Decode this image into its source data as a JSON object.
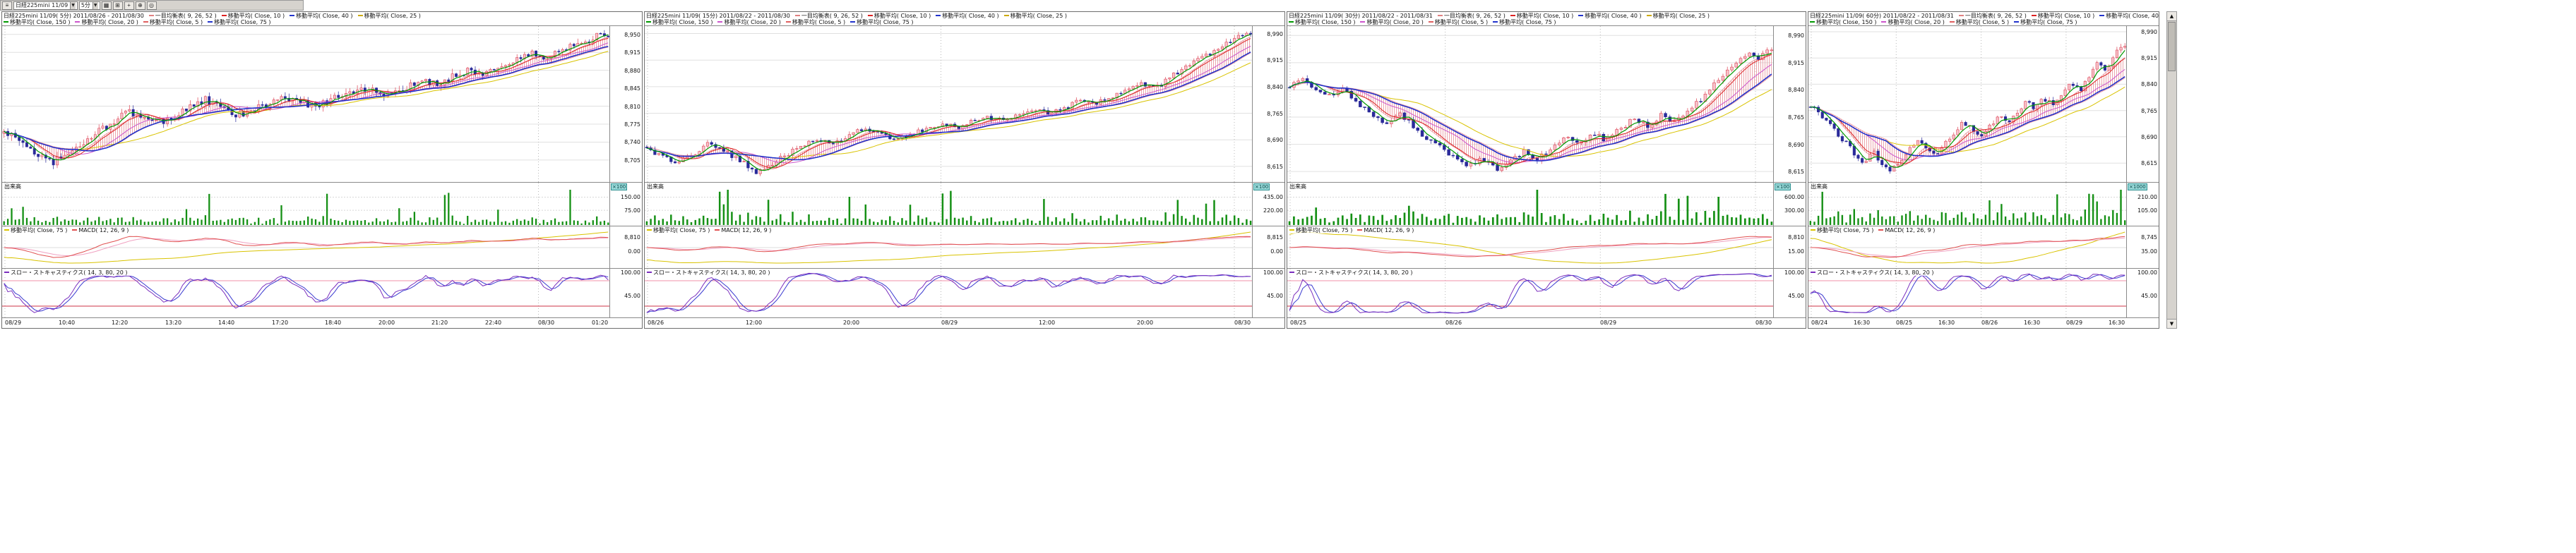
{
  "toolbar": {
    "menu_icon": "≡",
    "caret": "▼",
    "symbol_select": "日経225mini 11/09",
    "period_select": "5分",
    "buttons": [
      {
        "glyph": "▦"
      },
      {
        "glyph": "⊞"
      },
      {
        "glyph": "+"
      },
      {
        "glyph": "⊕"
      },
      {
        "glyph": "◎"
      }
    ]
  },
  "scrollbar": {
    "up_icon": "▲",
    "down_icon": "▼"
  },
  "colors": {
    "candle_up": "#dd4455",
    "candle_up_fill": "#f7c2ca",
    "candle_down": "#2a2a9a",
    "candle_down_fill": "#2a2a9a",
    "cloud": "#e89098",
    "ma_green": "#009900",
    "ma_red": "#dd2222",
    "ma_magenta": "#cc55cc",
    "ma_yellow": "#d9c300",
    "ma_blue": "#2233cc",
    "volume": "#159015",
    "macd": "#e05050",
    "macd_signal": "#f0a0c0",
    "stoch_k": "#7b2fbe",
    "stoch_d": "#3b3bd0",
    "ref_high": "#f090a8",
    "ref_low": "#cc3344",
    "grid": "#e0e0e0",
    "badge_bg": "#9adada"
  },
  "panels": [
    {
      "title_segments": [
        {
          "text": "日経225mini 11/09( 5分)  2011/08/26 - 2011/08/30",
          "color": "#000000"
        },
        {
          "text": "一目均衡表( 9, 26, 52 )",
          "color": "#e08080"
        },
        {
          "text": "移動平均( Close, 10 )",
          "color": "#dd2222"
        },
        {
          "text": "移動平均( Close, 40 )",
          "color": "#2233cc"
        },
        {
          "text": "移動平均( Close, 25 )",
          "color": "#ccaa00"
        }
      ],
      "indicator_segments": [
        {
          "text": "移動平均( Close, 150 )",
          "color": "#009900"
        },
        {
          "text": "移動平均( Close, 20 )",
          "color": "#cc55cc"
        },
        {
          "text": "移動平均( Close, 5 )",
          "color": "#e06060"
        },
        {
          "text": "移動平均( Close, 75 )",
          "color": "#2233cc"
        }
      ],
      "volume_label": "出来高",
      "unit_badge": "×100",
      "macd_segments": [
        {
          "text": "移動平均( Close, 75 )",
          "color": "#d9c300"
        },
        {
          "text": "MACD( 12, 26, 9 )",
          "color": "#e05050"
        }
      ],
      "stoch_segments": [
        {
          "text": "スロー・ストキャスティクス( 14, 3, 80, 20 )",
          "color": "#7b2fbe"
        }
      ]
    },
    {
      "title_segments": [
        {
          "text": "日経225mini 11/09( 15分)  2011/08/22 - 2011/08/30",
          "color": "#000000"
        },
        {
          "text": "一目均衡表( 9, 26, 52 )",
          "color": "#e08080"
        },
        {
          "text": "移動平均( Close, 10 )",
          "color": "#dd2222"
        },
        {
          "text": "移動平均( Close, 40 )",
          "color": "#2233cc"
        },
        {
          "text": "移動平均( Close, 25 )",
          "color": "#ccaa00"
        }
      ],
      "indicator_segments": [
        {
          "text": "移動平均( Close, 150 )",
          "color": "#009900"
        },
        {
          "text": "移動平均( Close, 20 )",
          "color": "#cc55cc"
        },
        {
          "text": "移動平均( Close, 5 )",
          "color": "#e06060"
        },
        {
          "text": "移動平均( Close, 75 )",
          "color": "#2233cc"
        }
      ],
      "volume_label": "出来高",
      "unit_badge": "×100",
      "macd_segments": [
        {
          "text": "移動平均( Close, 75 )",
          "color": "#d9c300"
        },
        {
          "text": "MACD( 12, 26, 9 )",
          "color": "#e05050"
        }
      ],
      "stoch_segments": [
        {
          "text": "スロー・ストキャスティクス( 14, 3, 80, 20 )",
          "color": "#7b2fbe"
        }
      ]
    },
    {
      "title_segments": [
        {
          "text": "日経225mini 11/09( 30分)  2011/08/22 - 2011/08/31",
          "color": "#000000"
        },
        {
          "text": "一目均衡表( 9, 26, 52 )",
          "color": "#e08080"
        },
        {
          "text": "移動平均( Close, 10 )",
          "color": "#dd2222"
        },
        {
          "text": "移動平均( Close, 40 )",
          "color": "#2233cc"
        },
        {
          "text": "移動平均( Close, 25 )",
          "color": "#ccaa00"
        }
      ],
      "indicator_segments": [
        {
          "text": "移動平均( Close, 150 )",
          "color": "#009900"
        },
        {
          "text": "移動平均( Close, 20 )",
          "color": "#cc55cc"
        },
        {
          "text": "移動平均( Close, 5 )",
          "color": "#e06060"
        },
        {
          "text": "移動平均( Close, 75 )",
          "color": "#2233cc"
        }
      ],
      "volume_label": "出来高",
      "unit_badge": "×100",
      "macd_segments": [
        {
          "text": "移動平均( Close, 75 )",
          "color": "#d9c300"
        },
        {
          "text": "MACD( 12, 26, 9 )",
          "color": "#e05050"
        }
      ],
      "stoch_segments": [
        {
          "text": "スロー・ストキャスティクス( 14, 3, 80, 20 )",
          "color": "#7b2fbe"
        }
      ]
    },
    {
      "title_segments": [
        {
          "text": "日経225mini 11/09( 60分)  2011/08/22 - 2011/08/31",
          "color": "#000000"
        },
        {
          "text": "一目均衡表( 9, 26, 52 )",
          "color": "#e08080"
        },
        {
          "text": "移動平均( Close, 10 )",
          "color": "#dd2222"
        },
        {
          "text": "移動平均( Close, 40 )",
          "color": "#2233cc"
        },
        {
          "text": "移動平均( Close, 25 )",
          "color": "#ccaa00"
        }
      ],
      "indicator_segments": [
        {
          "text": "移動平均( Close, 150 )",
          "color": "#009900"
        },
        {
          "text": "移動平均( Close, 20 )",
          "color": "#cc55cc"
        },
        {
          "text": "移動平均( Close, 5 )",
          "color": "#e06060"
        },
        {
          "text": "移動平均( Close, 75 )",
          "color": "#2233cc"
        }
      ],
      "volume_label": "出来高",
      "unit_badge": "×1000",
      "macd_segments": [
        {
          "text": "移動平均( Close, 75 )",
          "color": "#d9c300"
        },
        {
          "text": "MACD( 12, 26, 9 )",
          "color": "#e05050"
        }
      ],
      "stoch_segments": [
        {
          "text": "スロー・ストキャスティクス( 14, 3, 80, 20 )",
          "color": "#7b2fbe"
        }
      ]
    }
  ],
  "chart_data": [
    {
      "type": "candlestick",
      "instrument": "日経225mini 11/09",
      "timeframe": "5分",
      "date_range": "2011/08/26 - 2011/08/30",
      "bars": 160,
      "price_range": [
        8665,
        8962
      ],
      "close_samples": [
        8760,
        8745,
        8720,
        8700,
        8712,
        8735,
        8758,
        8780,
        8798,
        8792,
        8778,
        8790,
        8810,
        8822,
        8806,
        8792,
        8800,
        8815,
        8826,
        8818,
        8810,
        8822,
        8835,
        8846,
        8838,
        8830,
        8845,
        8860,
        8852,
        8870,
        8880,
        8874,
        8886,
        8900,
        8912,
        8904,
        8920,
        8934,
        8944,
        8950
      ],
      "price_axis_labels": [
        "8,950",
        "8,915",
        "8,880",
        "8,845",
        "8,810",
        "8,775",
        "8,740",
        "8,705"
      ],
      "volume_axis_labels": [
        "150.00",
        "75.00"
      ],
      "macd_axis_labels": [
        "8,810",
        "0.00"
      ],
      "stoch_axis_labels": [
        "100.00",
        "45.00"
      ],
      "time_labels": [
        "08/29",
        "10:40",
        "12:20",
        "13:20",
        "14:40",
        "17:20",
        "18:40",
        "20:00",
        "21:20",
        "22:40",
        "08/30",
        "01:20"
      ],
      "overlays": [
        "一目均衡表( 9, 26, 52 )",
        "移動平均( Close, 5 )",
        "移動平均( Close, 10 )",
        "移動平均( Close, 20 )",
        "移動平均( Close, 25 )",
        "移動平均( Close, 40 )",
        "移動平均( Close, 75 )",
        "移動平均( Close, 150 )"
      ],
      "lower_indicators": [
        "出来高",
        "MACD( 12, 26, 9 )",
        "スロー・ストキャスティクス( 14, 3, 80, 20 )"
      ]
    },
    {
      "type": "candlestick",
      "instrument": "日経225mini 11/09",
      "timeframe": "15分",
      "date_range": "2011/08/22 - 2011/08/30",
      "bars": 150,
      "price_range": [
        8575,
        9005
      ],
      "close_samples": [
        8660,
        8642,
        8622,
        8650,
        8678,
        8660,
        8632,
        8600,
        8618,
        8648,
        8670,
        8690,
        8678,
        8700,
        8720,
        8708,
        8690,
        8705,
        8722,
        8735,
        8724,
        8740,
        8755,
        8744,
        8760,
        8775,
        8764,
        8780,
        8800,
        8790,
        8812,
        8830,
        8850,
        8840,
        8872,
        8900,
        8922,
        8950,
        8975,
        8990
      ],
      "price_axis_labels": [
        "8,990",
        "8,915",
        "8,840",
        "8,765",
        "8,690",
        "8,615"
      ],
      "volume_axis_labels": [
        "435.00",
        "220.00"
      ],
      "macd_axis_labels": [
        "8,815",
        "0.00"
      ],
      "stoch_axis_labels": [
        "100.00",
        "45.00"
      ],
      "time_labels": [
        "08/26",
        "12:00",
        "20:00",
        "08/29",
        "12:00",
        "20:00",
        "08/30"
      ],
      "overlays": [
        "一目均衡表( 9, 26, 52 )",
        "移動平均( Close, 5 )",
        "移動平均( Close, 10 )",
        "移動平均( Close, 20 )",
        "移動平均( Close, 25 )",
        "移動平均( Close, 40 )",
        "移動平均( Close, 75 )",
        "移動平均( Close, 150 )"
      ],
      "lower_indicators": [
        "出来高",
        "MACD( 12, 26, 9 )",
        "スロー・ストキャスティクス( 14, 3, 80, 20 )"
      ]
    },
    {
      "type": "candlestick",
      "instrument": "日経225mini 11/09",
      "timeframe": "30分",
      "date_range": "2011/08/22 - 2011/08/31",
      "bars": 110,
      "price_range": [
        8590,
        9010
      ],
      "close_samples": [
        8850,
        8872,
        8840,
        8820,
        8842,
        8800,
        8770,
        8750,
        8772,
        8740,
        8700,
        8680,
        8650,
        8630,
        8652,
        8620,
        8640,
        8670,
        8650,
        8682,
        8710,
        8690,
        8722,
        8700,
        8732,
        8760,
        8740,
        8772,
        8752,
        8782,
        8820,
        8860,
        8900,
        8940,
        8928,
        8955
      ],
      "price_axis_labels": [
        "8,990",
        "8,915",
        "8,840",
        "8,765",
        "8,690",
        "8,615"
      ],
      "volume_axis_labels": [
        "600.00",
        "300.00"
      ],
      "macd_axis_labels": [
        "8,810",
        "15.00"
      ],
      "stoch_axis_labels": [
        "100.00",
        "45.00"
      ],
      "time_labels": [
        "08/25",
        "08/26",
        "08/29",
        "08/30"
      ],
      "overlays": [
        "一目均衡表( 9, 26, 52 )",
        "移動平均( Close, 5 )",
        "移動平均( Close, 10 )",
        "移動平均( Close, 20 )",
        "移動平均( Close, 25 )",
        "移動平均( Close, 40 )",
        "移動平均( Close, 75 )",
        "移動平均( Close, 150 )"
      ],
      "lower_indicators": [
        "出来高",
        "MACD( 12, 26, 9 )",
        "スロー・ストキャスティクス( 14, 3, 80, 20 )"
      ]
    },
    {
      "type": "candlestick",
      "instrument": "日経225mini 11/09",
      "timeframe": "60分",
      "date_range": "2011/08/22 - 2011/08/31",
      "bars": 80,
      "price_range": [
        8565,
        9000
      ],
      "close_samples": [
        8780,
        8760,
        8730,
        8700,
        8670,
        8640,
        8618,
        8650,
        8610,
        8590,
        8622,
        8652,
        8680,
        8660,
        8640,
        8672,
        8700,
        8730,
        8710,
        8690,
        8722,
        8750,
        8730,
        8762,
        8790,
        8770,
        8800,
        8782,
        8812,
        8840,
        8822,
        8860,
        8900,
        8882,
        8930,
        8952
      ],
      "price_axis_labels": [
        "8,990",
        "8,915",
        "8,840",
        "8,765",
        "8,690",
        "8,615"
      ],
      "volume_axis_labels": [
        "210.00",
        "105.00"
      ],
      "macd_axis_labels": [
        "8,745",
        "35.00"
      ],
      "stoch_axis_labels": [
        "100.00",
        "45.00"
      ],
      "time_labels": [
        "08/24",
        "16:30",
        "08/25",
        "16:30",
        "08/26",
        "16:30",
        "08/29",
        "16:30"
      ],
      "overlays": [
        "一目均衡表( 9, 26, 52 )",
        "移動平均( Close, 5 )",
        "移動平均( Close, 10 )",
        "移動平均( Close, 20 )",
        "移動平均( Close, 25 )",
        "移動平均( Close, 40 )",
        "移動平均( Close, 75 )",
        "移動平均( Close, 150 )"
      ],
      "lower_indicators": [
        "出来高",
        "MACD( 12, 26, 9 )",
        "スロー・ストキャスティクス( 14, 3, 80, 20 )"
      ]
    }
  ]
}
